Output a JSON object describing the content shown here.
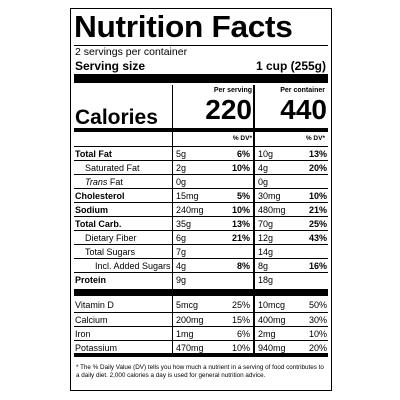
{
  "title": "Nutrition Facts",
  "servings": "2 servings per container",
  "serving_size_label": "Serving size",
  "serving_size_value": "1 cup (255g)",
  "columns": {
    "per_serving": "Per serving",
    "per_container": "Per container",
    "dv": "% DV*"
  },
  "calories": {
    "label": "Calories",
    "per_serving": "220",
    "per_container": "440"
  },
  "nutrients": [
    {
      "name": "Total Fat",
      "bold": true,
      "indent": 0,
      "s_amt": "5g",
      "s_dv": "6%",
      "c_amt": "10g",
      "c_dv": "13%",
      "dv_bold": true
    },
    {
      "name": "Saturated Fat",
      "bold": false,
      "indent": 1,
      "s_amt": "2g",
      "s_dv": "10%",
      "c_amt": "4g",
      "c_dv": "20%",
      "dv_bold": true
    },
    {
      "name": "Trans Fat",
      "bold": false,
      "indent": 1,
      "italic_prefix": "Trans",
      "s_amt": "0g",
      "s_dv": "",
      "c_amt": "0g",
      "c_dv": "",
      "dv_bold": true
    },
    {
      "name": "Cholesterol",
      "bold": true,
      "indent": 0,
      "s_amt": "15mg",
      "s_dv": "5%",
      "c_amt": "30mg",
      "c_dv": "10%",
      "dv_bold": true
    },
    {
      "name": "Sodium",
      "bold": true,
      "indent": 0,
      "s_amt": "240mg",
      "s_dv": "10%",
      "c_amt": "480mg",
      "c_dv": "21%",
      "dv_bold": true
    },
    {
      "name": "Total Carb.",
      "bold": true,
      "indent": 0,
      "s_amt": "35g",
      "s_dv": "13%",
      "c_amt": "70g",
      "c_dv": "25%",
      "dv_bold": true
    },
    {
      "name": "Dietary Fiber",
      "bold": false,
      "indent": 1,
      "s_amt": "6g",
      "s_dv": "21%",
      "c_amt": "12g",
      "c_dv": "43%",
      "dv_bold": true
    },
    {
      "name": "Total Sugars",
      "bold": false,
      "indent": 1,
      "s_amt": "7g",
      "s_dv": "",
      "c_amt": "14g",
      "c_dv": "",
      "dv_bold": true
    },
    {
      "name": "Incl. Added Sugars",
      "bold": false,
      "indent": 2,
      "s_amt": "4g",
      "s_dv": "8%",
      "c_amt": "8g",
      "c_dv": "16%",
      "dv_bold": true
    },
    {
      "name": "Protein",
      "bold": true,
      "indent": 0,
      "s_amt": "9g",
      "s_dv": "",
      "c_amt": "18g",
      "c_dv": "",
      "dv_bold": true
    }
  ],
  "vitamins": [
    {
      "name": "Vitamin D",
      "s_amt": "5mcg",
      "s_dv": "25%",
      "c_amt": "10mcg",
      "c_dv": "50%"
    },
    {
      "name": "Calcium",
      "s_amt": "200mg",
      "s_dv": "15%",
      "c_amt": "400mg",
      "c_dv": "30%"
    },
    {
      "name": "Iron",
      "s_amt": "1mg",
      "s_dv": "6%",
      "c_amt": "2mg",
      "c_dv": "10%"
    },
    {
      "name": "Potassium",
      "s_amt": "470mg",
      "s_dv": "10%",
      "c_amt": "940mg",
      "c_dv": "20%"
    }
  ],
  "footnote": "* The % Daily Value (DV) tells you how much a nutrient in a serving of food contributes to a daily diet. 2,000 calories a day is used for general nutrition advice."
}
